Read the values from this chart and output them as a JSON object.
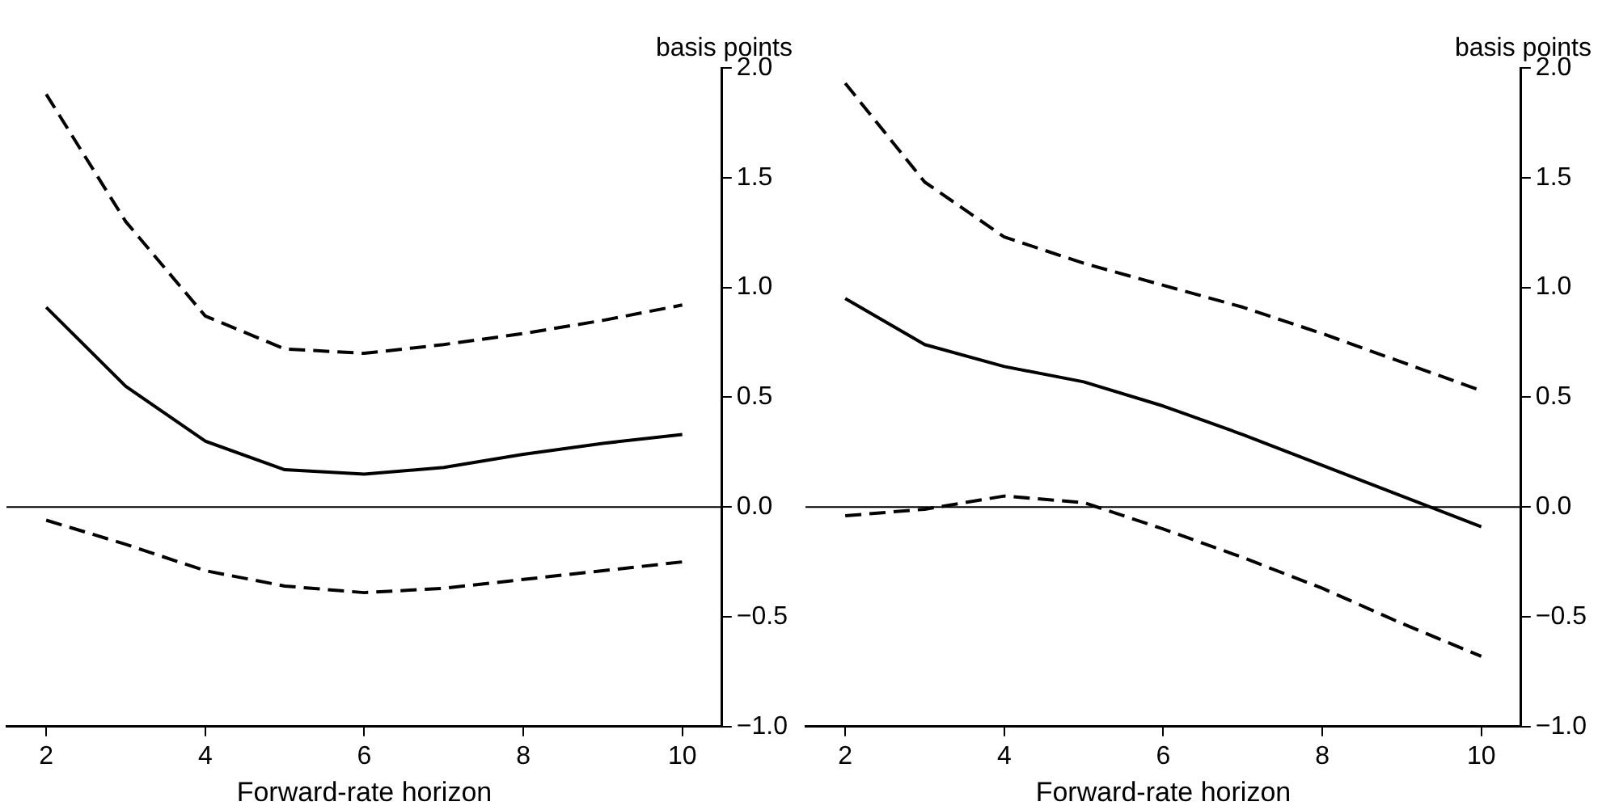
{
  "chart_data": [
    {
      "type": "line",
      "xlabel": "Forward-rate horizon",
      "ylabel": "basis points",
      "x": [
        2,
        3,
        4,
        5,
        6,
        7,
        8,
        9,
        10
      ],
      "series": [
        {
          "color": "#000000",
          "line_style": "dashed",
          "values": [
            1.88,
            1.3,
            0.87,
            0.72,
            0.7,
            0.74,
            0.79,
            0.85,
            0.92
          ]
        },
        {
          "color": "#000000",
          "line_style": "solid",
          "values": [
            0.91,
            0.55,
            0.3,
            0.17,
            0.15,
            0.18,
            0.24,
            0.29,
            0.33
          ]
        },
        {
          "color": "#000000",
          "line_style": "dashed",
          "values": [
            -0.06,
            -0.17,
            -0.29,
            -0.36,
            -0.39,
            -0.37,
            -0.33,
            -0.29,
            -0.25
          ]
        }
      ],
      "xlim": [
        1.5,
        10.5
      ],
      "xticks": [
        2,
        4,
        6,
        8,
        10
      ],
      "ylim": [
        -1.0,
        2.0
      ],
      "yticks": [
        {
          "value": -1,
          "label": "−1.0"
        },
        {
          "value": -0.5,
          "label": "−0.5"
        },
        {
          "value": 0,
          "label": "0.0"
        },
        {
          "value": 0.5,
          "label": "0.5"
        },
        {
          "value": 1,
          "label": "1.0"
        },
        {
          "value": 1.5,
          "label": "1.5"
        },
        {
          "value": 2,
          "label": "2.0"
        }
      ],
      "ref_lines": [
        {
          "axis": "y",
          "value": 0,
          "color": "#000000"
        }
      ],
      "grid": false,
      "legend": false,
      "marker": "none"
    },
    {
      "type": "line",
      "xlabel": "Forward-rate horizon",
      "ylabel": "basis points",
      "x": [
        2,
        3,
        4,
        5,
        6,
        7,
        8,
        9,
        10
      ],
      "series": [
        {
          "color": "#000000",
          "line_style": "dashed",
          "values": [
            1.93,
            1.48,
            1.23,
            1.11,
            1.01,
            0.91,
            0.79,
            0.66,
            0.53
          ]
        },
        {
          "color": "#000000",
          "line_style": "solid",
          "values": [
            0.95,
            0.74,
            0.64,
            0.57,
            0.46,
            0.33,
            0.19,
            0.05,
            -0.09
          ]
        },
        {
          "color": "#000000",
          "line_style": "dashed",
          "values": [
            -0.04,
            -0.01,
            0.05,
            0.02,
            -0.1,
            -0.23,
            -0.37,
            -0.53,
            -0.68
          ]
        }
      ],
      "xlim": [
        1.5,
        10.5
      ],
      "xticks": [
        2,
        4,
        6,
        8,
        10
      ],
      "ylim": [
        -1.0,
        2.0
      ],
      "yticks": [
        {
          "value": -1,
          "label": "−1.0"
        },
        {
          "value": -0.5,
          "label": "−0.5"
        },
        {
          "value": 0,
          "label": "0.0"
        },
        {
          "value": 0.5,
          "label": "0.5"
        },
        {
          "value": 1,
          "label": "1.0"
        },
        {
          "value": 1.5,
          "label": "1.5"
        },
        {
          "value": 2,
          "label": "2.0"
        }
      ],
      "ref_lines": [
        {
          "axis": "y",
          "value": 0,
          "color": "#000000"
        }
      ],
      "grid": false,
      "legend": false,
      "marker": "none"
    }
  ]
}
